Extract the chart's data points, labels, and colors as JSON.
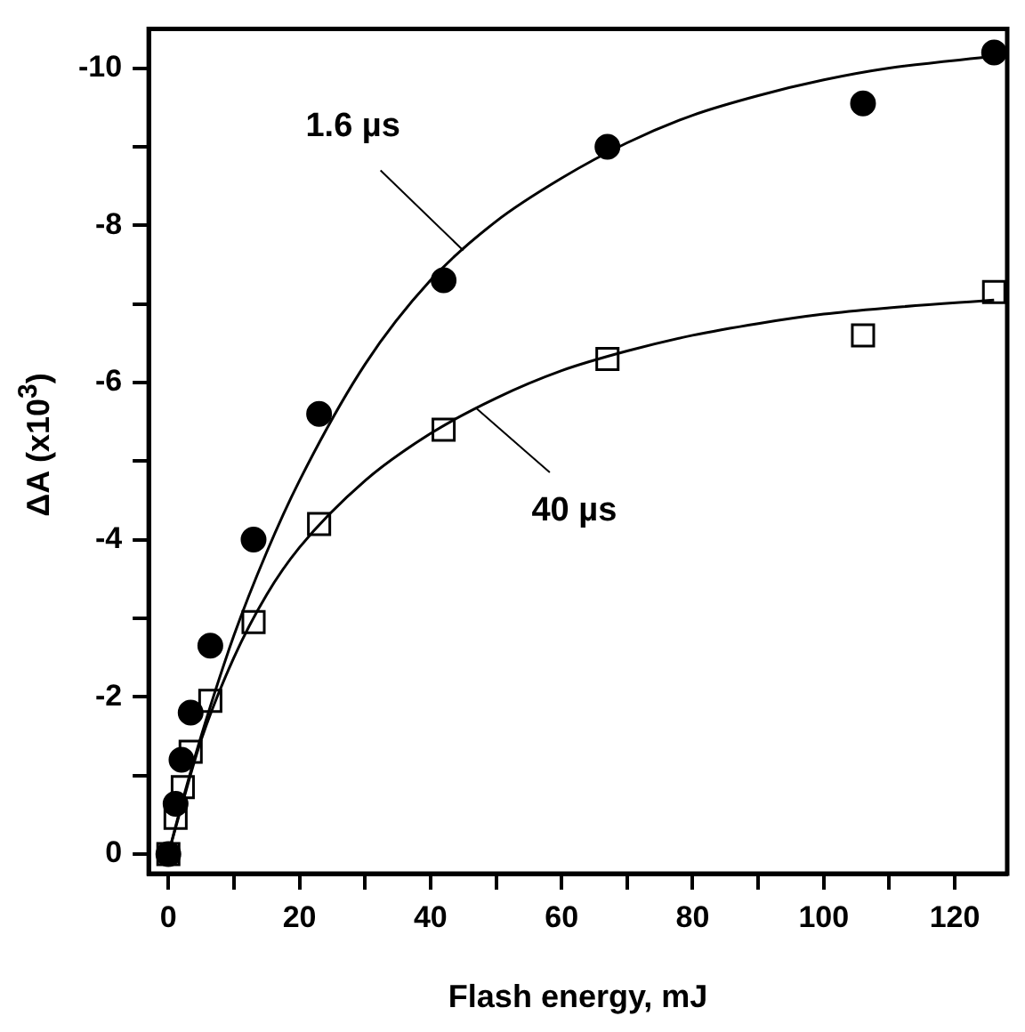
{
  "chart_data": {
    "type": "scatter",
    "xlabel": "Flash energy, mJ",
    "ylabel": "ΔA (x10$^{3}$)",
    "xlim": [
      -3,
      128
    ],
    "ylim": [
      0.25,
      -10.5
    ],
    "xticks": [
      0,
      {
        "value": 10,
        "label": null
      },
      20,
      {
        "value": 30,
        "label": null
      },
      40,
      {
        "value": 50,
        "label": null
      },
      60,
      {
        "value": 70,
        "label": null
      },
      80,
      {
        "value": 90,
        "label": null
      },
      100,
      {
        "value": 110,
        "label": null
      },
      120
    ],
    "yticks": [
      0,
      {
        "value": -1,
        "label": null
      },
      -2,
      {
        "value": -3,
        "label": null
      },
      -4,
      {
        "value": -5,
        "label": null
      },
      -6,
      {
        "value": -7,
        "label": null
      },
      -8,
      {
        "value": -9,
        "label": null
      },
      -10
    ],
    "grid": false,
    "legend": false,
    "series": [
      {
        "type": "line",
        "marker": "none",
        "color": "#000000",
        "x": [
          0,
          2,
          5,
          10,
          15,
          20,
          30,
          40,
          50,
          60,
          70,
          80,
          90,
          100,
          110,
          126
        ],
        "values": [
          0,
          -0.63,
          -1.5,
          -2.78,
          -3.84,
          -4.75,
          -6.23,
          -7.3,
          -8.05,
          -8.6,
          -9.05,
          -9.4,
          -9.65,
          -9.85,
          -10.0,
          -10.15
        ]
      },
      {
        "type": "line",
        "marker": "none",
        "color": "#000000",
        "x": [
          0,
          2,
          5,
          10,
          15,
          20,
          30,
          40,
          50,
          60,
          70,
          80,
          90,
          100,
          110,
          126
        ],
        "values": [
          0,
          -0.6,
          -1.45,
          -2.5,
          -3.3,
          -3.9,
          -4.75,
          -5.35,
          -5.8,
          -6.15,
          -6.4,
          -6.6,
          -6.75,
          -6.87,
          -6.95,
          -7.05
        ]
      },
      {
        "marker": "circle",
        "color": "#000000",
        "x": [
          0,
          1.1,
          2,
          3.4,
          6.4,
          13,
          23,
          42,
          67,
          106,
          126
        ],
        "values": [
          0,
          -0.64,
          -1.2,
          -1.8,
          -2.65,
          -4.0,
          -5.6,
          -7.3,
          -9.0,
          -9.55,
          -10.2
        ]
      },
      {
        "marker": "square",
        "color": "#000000",
        "x": [
          0,
          1.1,
          2.2,
          3.4,
          6.4,
          13,
          23,
          42,
          67,
          106,
          126
        ],
        "values": [
          0,
          -0.46,
          -0.85,
          -1.3,
          -1.95,
          -2.95,
          -4.2,
          -5.4,
          -6.3,
          -6.6,
          -7.15
        ]
      }
    ],
    "annotations": [
      {
        "text": "1.6 µs",
        "x": 45,
        "y": -7.68
      },
      {
        "text": "40 µs",
        "x": 47,
        "y": -5.67
      }
    ]
  }
}
